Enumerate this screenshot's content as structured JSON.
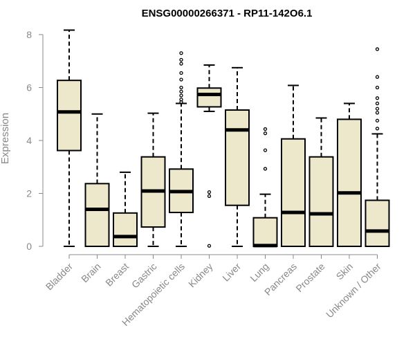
{
  "chart_data": {
    "type": "boxplot",
    "title": "ENSG00000266371 - RP11-142O6.1",
    "xlabel": "",
    "ylabel": "Expression",
    "ylim": [
      0,
      8
    ],
    "yticks": [
      0,
      2,
      4,
      6,
      8
    ],
    "grid": false,
    "colors": {
      "box_fill": "#EDE7CC",
      "stroke": "#000000",
      "axis_text": "#888888"
    },
    "categories": [
      "Bladder",
      "Brain",
      "Breast",
      "Gastric",
      "Hematopoietic cells",
      "Kidney",
      "Liver",
      "Lung",
      "Pancreas",
      "Prostate",
      "Skin",
      "Unknown / Other"
    ],
    "boxes": [
      {
        "category": "Bladder",
        "min": 0,
        "q1": 3.62,
        "median": 5.08,
        "q3": 6.27,
        "max": 8.17,
        "outliers": []
      },
      {
        "category": "Brain",
        "min": 0,
        "q1": 0,
        "median": 1.4,
        "q3": 2.37,
        "max": 5.0,
        "outliers": []
      },
      {
        "category": "Breast",
        "min": 0,
        "q1": 0,
        "median": 0.37,
        "q3": 1.26,
        "max": 2.8,
        "outliers": []
      },
      {
        "category": "Gastric",
        "min": 0,
        "q1": 0.73,
        "median": 2.09,
        "q3": 3.38,
        "max": 5.03,
        "outliers": []
      },
      {
        "category": "Hematopoietic cells",
        "min": 0,
        "q1": 1.28,
        "median": 2.07,
        "q3": 2.92,
        "max": 5.4,
        "outliers": [
          5.45,
          5.55,
          5.7,
          5.85,
          6.0,
          6.3,
          6.55,
          6.9,
          7.05,
          7.3
        ]
      },
      {
        "category": "Kidney",
        "min": 5.1,
        "q1": 5.27,
        "median": 5.74,
        "q3": 5.98,
        "max": 6.85,
        "outliers": [
          0.02,
          1.9,
          2.05
        ]
      },
      {
        "category": "Liver",
        "min": 0,
        "q1": 1.55,
        "median": 4.4,
        "q3": 5.15,
        "max": 6.75,
        "outliers": []
      },
      {
        "category": "Lung",
        "min": 0,
        "q1": 0,
        "median": 0.03,
        "q3": 1.08,
        "max": 1.97,
        "outliers": [
          2.93,
          3.63,
          4.27,
          4.43
        ]
      },
      {
        "category": "Pancreas",
        "min": 0,
        "q1": 0,
        "median": 1.28,
        "q3": 4.06,
        "max": 6.08,
        "outliers": []
      },
      {
        "category": "Prostate",
        "min": 0,
        "q1": 0,
        "median": 1.23,
        "q3": 3.38,
        "max": 4.85,
        "outliers": []
      },
      {
        "category": "Skin",
        "min": 0,
        "q1": 0,
        "median": 2.02,
        "q3": 4.8,
        "max": 5.4,
        "outliers": []
      },
      {
        "category": "Unknown / Other",
        "min": 0,
        "q1": 0,
        "median": 0.58,
        "q3": 1.74,
        "max": 4.25,
        "outliers": [
          4.45,
          4.75,
          5.05,
          5.2,
          5.4,
          5.6,
          6.0,
          6.4,
          7.45
        ]
      }
    ]
  }
}
